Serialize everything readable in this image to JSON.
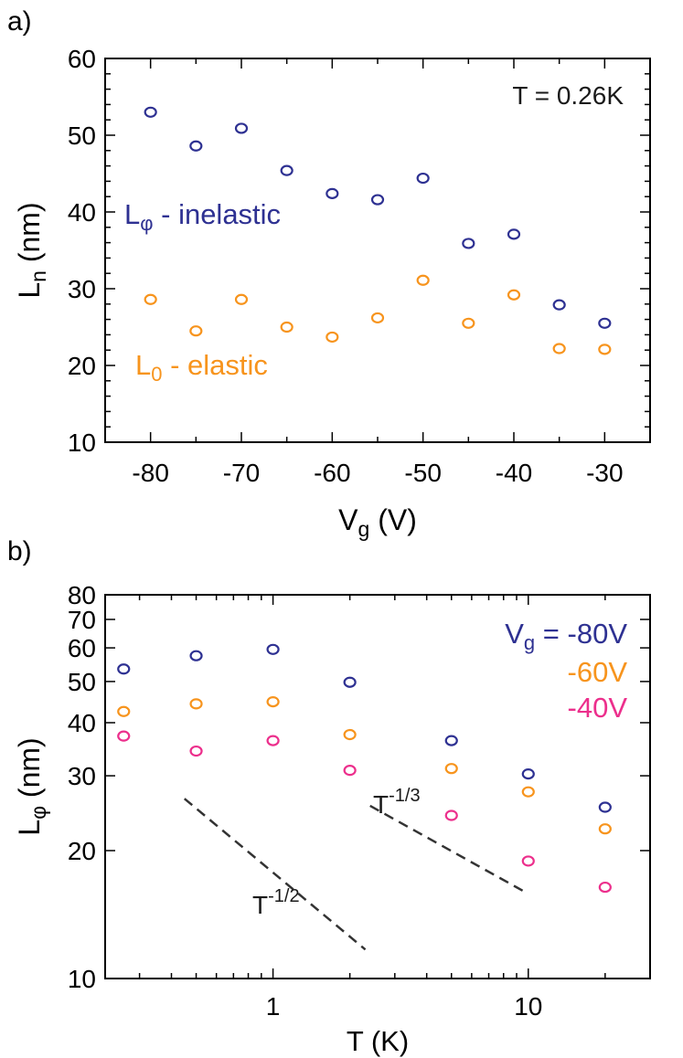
{
  "colors": {
    "blue": "#2e3192",
    "orange": "#f7941d",
    "pink": "#ec2f8c",
    "dash": "#333333",
    "axis": "#000000"
  },
  "chart_data": [
    {
      "panel_label": "a)",
      "type": "scatter",
      "xlabel_main": "V",
      "xlabel_sub": "g",
      "xlabel_tail": " (V)",
      "ylabel_main": "L",
      "ylabel_sub": "n",
      "ylabel_tail": " (nm)",
      "xlim": [
        -85,
        -25
      ],
      "ylim": [
        10,
        60
      ],
      "xticks": [
        -80,
        -70,
        -60,
        -50,
        -40,
        -30
      ],
      "yticks": [
        10,
        20,
        30,
        40,
        50,
        60
      ],
      "annotation": "T = 0.26K",
      "series": [
        {
          "name": "inelastic",
          "label_main": "L",
          "label_sub": "φ",
          "label_tail": " - inelastic",
          "color": "#2e3192",
          "x": [
            -80,
            -75,
            -70,
            -65,
            -60,
            -55,
            -50,
            -45,
            -40,
            -35,
            -30
          ],
          "y": [
            53.0,
            48.6,
            50.9,
            45.4,
            42.4,
            41.6,
            44.4,
            35.9,
            37.1,
            27.9,
            25.5
          ]
        },
        {
          "name": "elastic",
          "label_main": "L",
          "label_sub": "0",
          "label_tail": " - elastic",
          "color": "#f7941d",
          "x": [
            -80,
            -75,
            -70,
            -65,
            -60,
            -55,
            -50,
            -45,
            -40,
            -35,
            -30
          ],
          "y": [
            28.6,
            24.5,
            28.6,
            25.0,
            23.7,
            26.2,
            31.1,
            25.5,
            29.2,
            22.2,
            22.1
          ]
        }
      ]
    },
    {
      "panel_label": "b)",
      "type": "scatter",
      "xscale": "log",
      "yscale": "log",
      "xlabel_main": "T (K)",
      "ylabel_main": "L",
      "ylabel_sub": "φ",
      "ylabel_tail": " (nm)",
      "xlim": [
        0.22,
        30
      ],
      "ylim": [
        10,
        80
      ],
      "xticks": [
        1,
        10
      ],
      "xtick_labels": [
        "1",
        "10"
      ],
      "yticks": [
        10,
        20,
        30,
        40,
        50,
        60,
        70,
        80
      ],
      "ytick_labels": [
        "10",
        "20",
        "30",
        "40",
        "50",
        "60",
        "70",
        "80"
      ],
      "legend_prefix_main": "V",
      "legend_prefix_sub": "g",
      "legend_prefix_tail": " = ",
      "series": [
        {
          "name": "-80V",
          "color": "#2e3192",
          "x": [
            0.26,
            0.5,
            1,
            2,
            5,
            10,
            20
          ],
          "y": [
            53.5,
            57.5,
            59.5,
            49.8,
            36.3,
            30.3,
            25.3
          ]
        },
        {
          "name": "-60V",
          "color": "#f7941d",
          "x": [
            0.26,
            0.5,
            1,
            2,
            5,
            10,
            20
          ],
          "y": [
            42.5,
            44.3,
            44.8,
            37.5,
            31.2,
            27.5,
            22.5
          ]
        },
        {
          "name": "-40V",
          "color": "#ec2f8c",
          "x": [
            0.26,
            0.5,
            1,
            2,
            5,
            10,
            20
          ],
          "y": [
            37.2,
            34.3,
            36.3,
            30.9,
            24.2,
            18.9,
            16.4
          ]
        }
      ],
      "guides": [
        {
          "label_base": "T",
          "label_exp": "-1/2",
          "x": [
            0.45,
            2.3
          ],
          "y": [
            26.5,
            11.7
          ]
        },
        {
          "label_base": "T",
          "label_exp": "-1/3",
          "x": [
            2.4,
            9.5
          ],
          "y": [
            25.5,
            16.1
          ]
        }
      ]
    }
  ]
}
